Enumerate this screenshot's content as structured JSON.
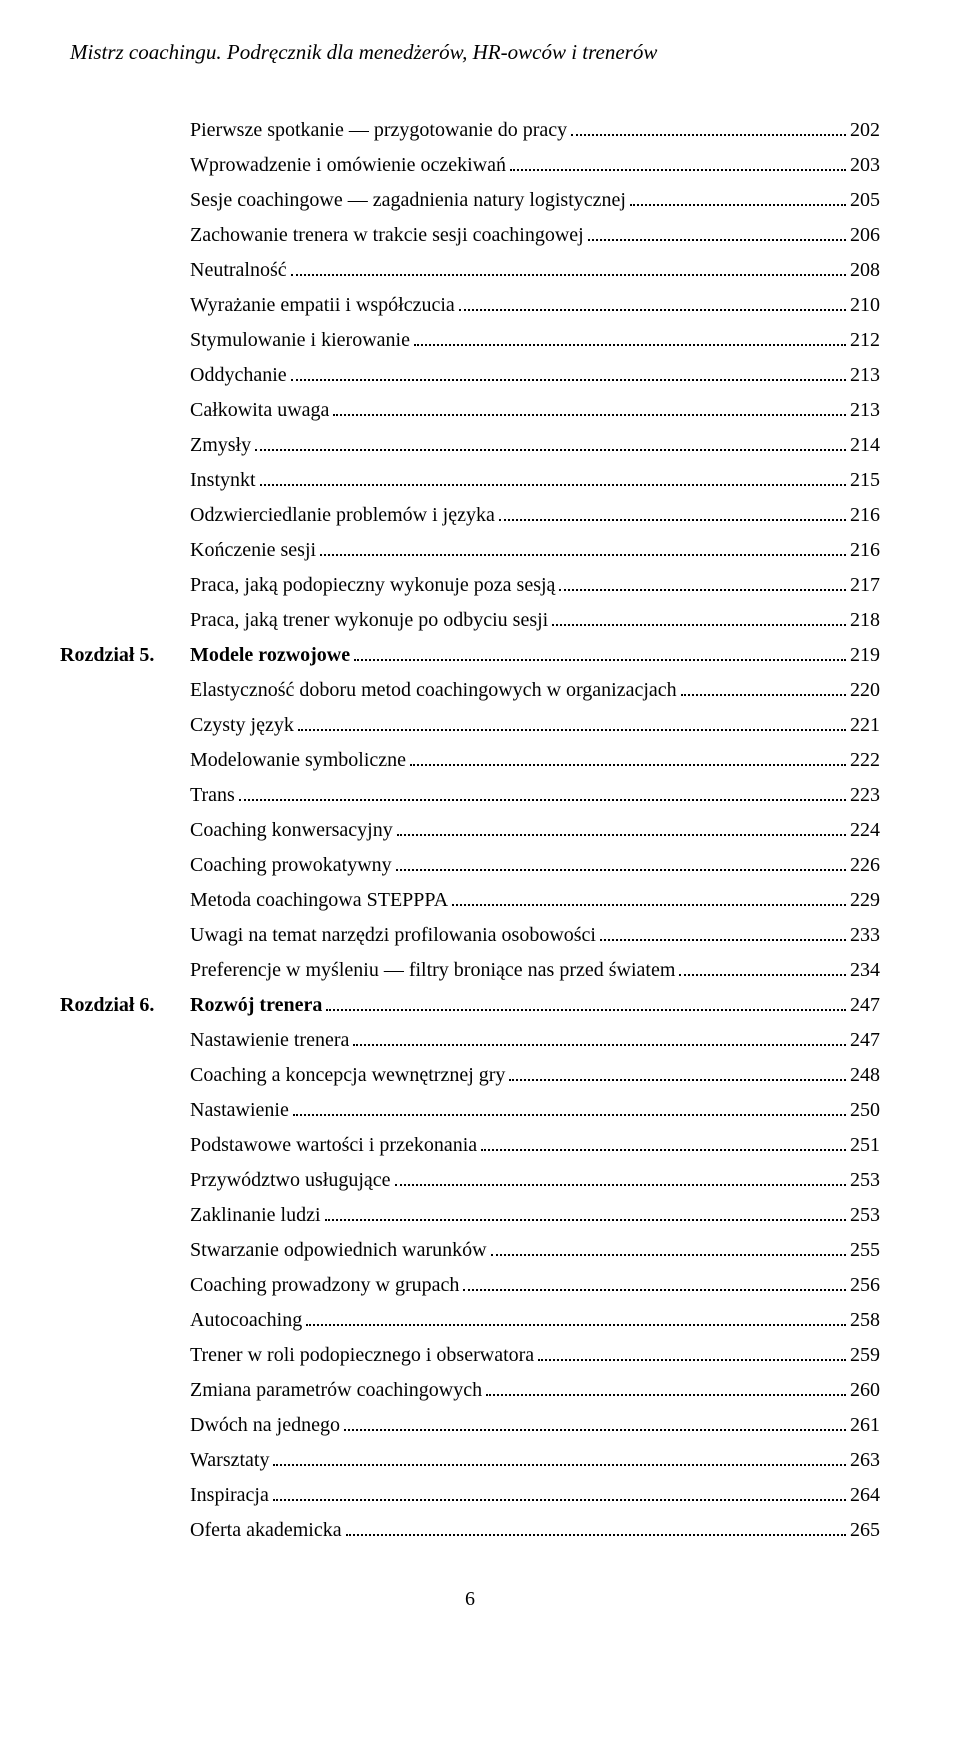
{
  "header": "Mistrz coachingu. Podręcznik dla menedżerów, HR-owców i trenerów",
  "page_number": "6",
  "toc": [
    {
      "type": "item",
      "text": "Pierwsze spotkanie — przygotowanie do pracy",
      "page": "202"
    },
    {
      "type": "item",
      "text": "Wprowadzenie i omówienie oczekiwań",
      "page": "203"
    },
    {
      "type": "item",
      "text": "Sesje coachingowe — zagadnienia natury logistycznej",
      "page": "205"
    },
    {
      "type": "item",
      "text": "Zachowanie trenera w trakcie sesji coachingowej",
      "page": "206"
    },
    {
      "type": "item",
      "text": "Neutralność",
      "page": "208"
    },
    {
      "type": "item",
      "text": "Wyrażanie empatii i współczucia",
      "page": "210"
    },
    {
      "type": "item",
      "text": "Stymulowanie i kierowanie",
      "page": "212"
    },
    {
      "type": "item",
      "text": "Oddychanie",
      "page": "213"
    },
    {
      "type": "item",
      "text": "Całkowita uwaga",
      "page": "213"
    },
    {
      "type": "item",
      "text": "Zmysły",
      "page": "214"
    },
    {
      "type": "item",
      "text": "Instynkt",
      "page": "215"
    },
    {
      "type": "item",
      "text": "Odzwierciedlanie problemów i języka",
      "page": "216"
    },
    {
      "type": "item",
      "text": "Kończenie sesji",
      "page": "216"
    },
    {
      "type": "item",
      "text": "Praca, jaką podopieczny wykonuje poza sesją",
      "page": "217"
    },
    {
      "type": "item",
      "text": "Praca, jaką trener wykonuje po odbyciu sesji",
      "page": "218"
    },
    {
      "type": "chapter",
      "chapter_label": "Rozdział 5.",
      "text": "Modele rozwojowe",
      "page": "219"
    },
    {
      "type": "item",
      "text": "Elastyczność doboru metod coachingowych w organizacjach",
      "page": "220"
    },
    {
      "type": "item",
      "text": "Czysty język",
      "page": "221"
    },
    {
      "type": "item",
      "text": "Modelowanie symboliczne",
      "page": "222"
    },
    {
      "type": "item",
      "text": "Trans",
      "page": "223"
    },
    {
      "type": "item",
      "text": "Coaching konwersacyjny",
      "page": "224"
    },
    {
      "type": "item",
      "text": "Coaching prowokatywny",
      "page": "226"
    },
    {
      "type": "item",
      "text": "Metoda coachingowa STEPPPA",
      "page": "229"
    },
    {
      "type": "item",
      "text": "Uwagi na temat narzędzi profilowania osobowości",
      "page": "233"
    },
    {
      "type": "item",
      "text": "Preferencje w myśleniu — filtry broniące nas przed światem",
      "page": "234"
    },
    {
      "type": "chapter",
      "chapter_label": "Rozdział 6.",
      "text": "Rozwój trenera",
      "page": "247"
    },
    {
      "type": "item",
      "text": "Nastawienie trenera",
      "page": "247"
    },
    {
      "type": "item",
      "text": "Coaching a koncepcja wewnętrznej gry",
      "page": "248"
    },
    {
      "type": "item",
      "text": "Nastawienie",
      "page": "250"
    },
    {
      "type": "item",
      "text": "Podstawowe wartości i przekonania",
      "page": "251"
    },
    {
      "type": "item",
      "text": "Przywództwo usługujące",
      "page": "253"
    },
    {
      "type": "item",
      "text": "Zaklinanie ludzi",
      "page": "253"
    },
    {
      "type": "item",
      "text": "Stwarzanie odpowiednich warunków",
      "page": "255"
    },
    {
      "type": "item",
      "text": "Coaching prowadzony w grupach",
      "page": "256"
    },
    {
      "type": "item",
      "text": "Autocoaching",
      "page": "258"
    },
    {
      "type": "item",
      "text": "Trener w roli podopiecznego i obserwatora",
      "page": "259"
    },
    {
      "type": "item",
      "text": "Zmiana parametrów coachingowych",
      "page": "260"
    },
    {
      "type": "item",
      "text": "Dwóch na jednego",
      "page": "261"
    },
    {
      "type": "item",
      "text": "Warsztaty",
      "page": "263"
    },
    {
      "type": "item",
      "text": "Inspiracja",
      "page": "264"
    },
    {
      "type": "item",
      "text": "Oferta akademicka",
      "page": "265"
    }
  ]
}
